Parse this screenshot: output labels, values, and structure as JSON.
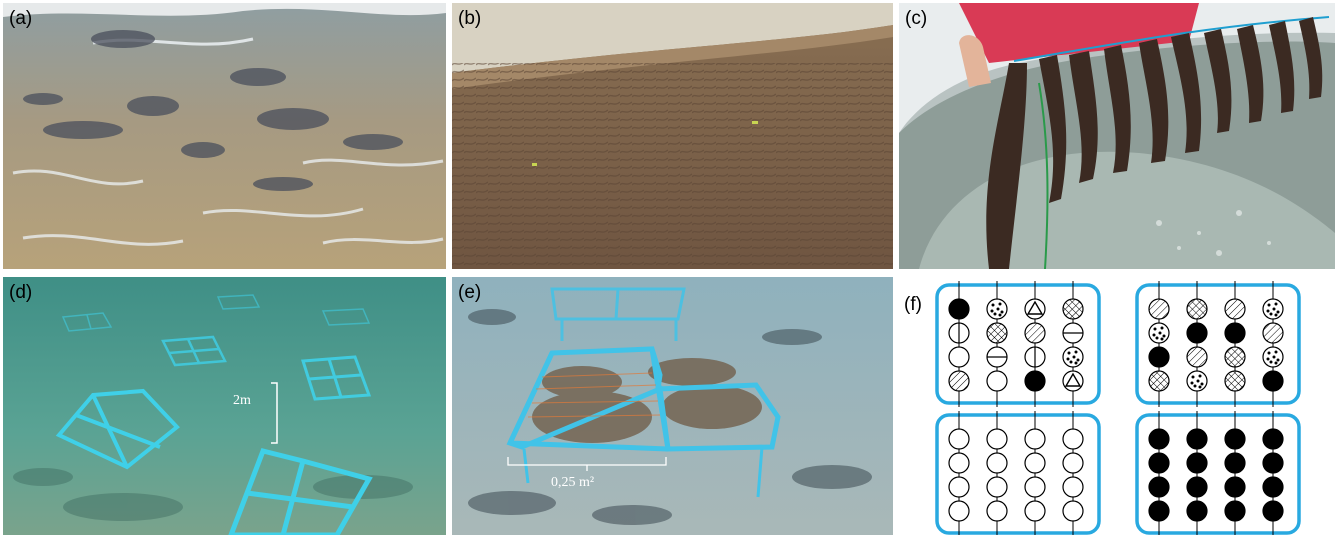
{
  "figure": {
    "panel_labels": [
      "(a)",
      "(b)",
      "(c)",
      "(d)",
      "(e)",
      "(f)"
    ],
    "annotations": {
      "d_distance": "2m",
      "e_area": "0,25 m²"
    }
  },
  "diagram_f": {
    "frame_color": "#29a9e0",
    "legend": {
      "solid": "black filled circle",
      "empty": "open circle",
      "hatch": "diagonal hatch",
      "cross": "cross hatch",
      "dots": "dotted",
      "hline": "horizontal line",
      "vline": "vertical line",
      "tri": "triangle"
    },
    "boxes": [
      {
        "name": "top-left",
        "rows": [
          [
            "solid",
            "dots",
            "tri",
            "cross"
          ],
          [
            "vline",
            "cross",
            "hatch",
            "hline"
          ],
          [
            "empty",
            "hline",
            "vline",
            "dots"
          ],
          [
            "hatch",
            "empty",
            "solid",
            "tri"
          ]
        ]
      },
      {
        "name": "top-right",
        "rows": [
          [
            "hatch",
            "cross",
            "hatch",
            "dots"
          ],
          [
            "dots",
            "solid",
            "solid",
            "hatch"
          ],
          [
            "solid",
            "hatch",
            "cross",
            "dots"
          ],
          [
            "cross",
            "dots",
            "cross",
            "solid"
          ]
        ]
      },
      {
        "name": "bottom-left",
        "rows": [
          [
            "empty",
            "empty",
            "empty",
            "empty"
          ],
          [
            "empty",
            "empty",
            "empty",
            "empty"
          ],
          [
            "empty",
            "empty",
            "empty",
            "empty"
          ],
          [
            "empty",
            "empty",
            "empty",
            "empty"
          ]
        ]
      },
      {
        "name": "bottom-right",
        "rows": [
          [
            "solid",
            "solid",
            "solid",
            "solid"
          ],
          [
            "solid",
            "solid",
            "solid",
            "solid"
          ],
          [
            "solid",
            "solid",
            "solid",
            "solid"
          ],
          [
            "solid",
            "solid",
            "solid",
            "solid"
          ]
        ]
      }
    ]
  }
}
